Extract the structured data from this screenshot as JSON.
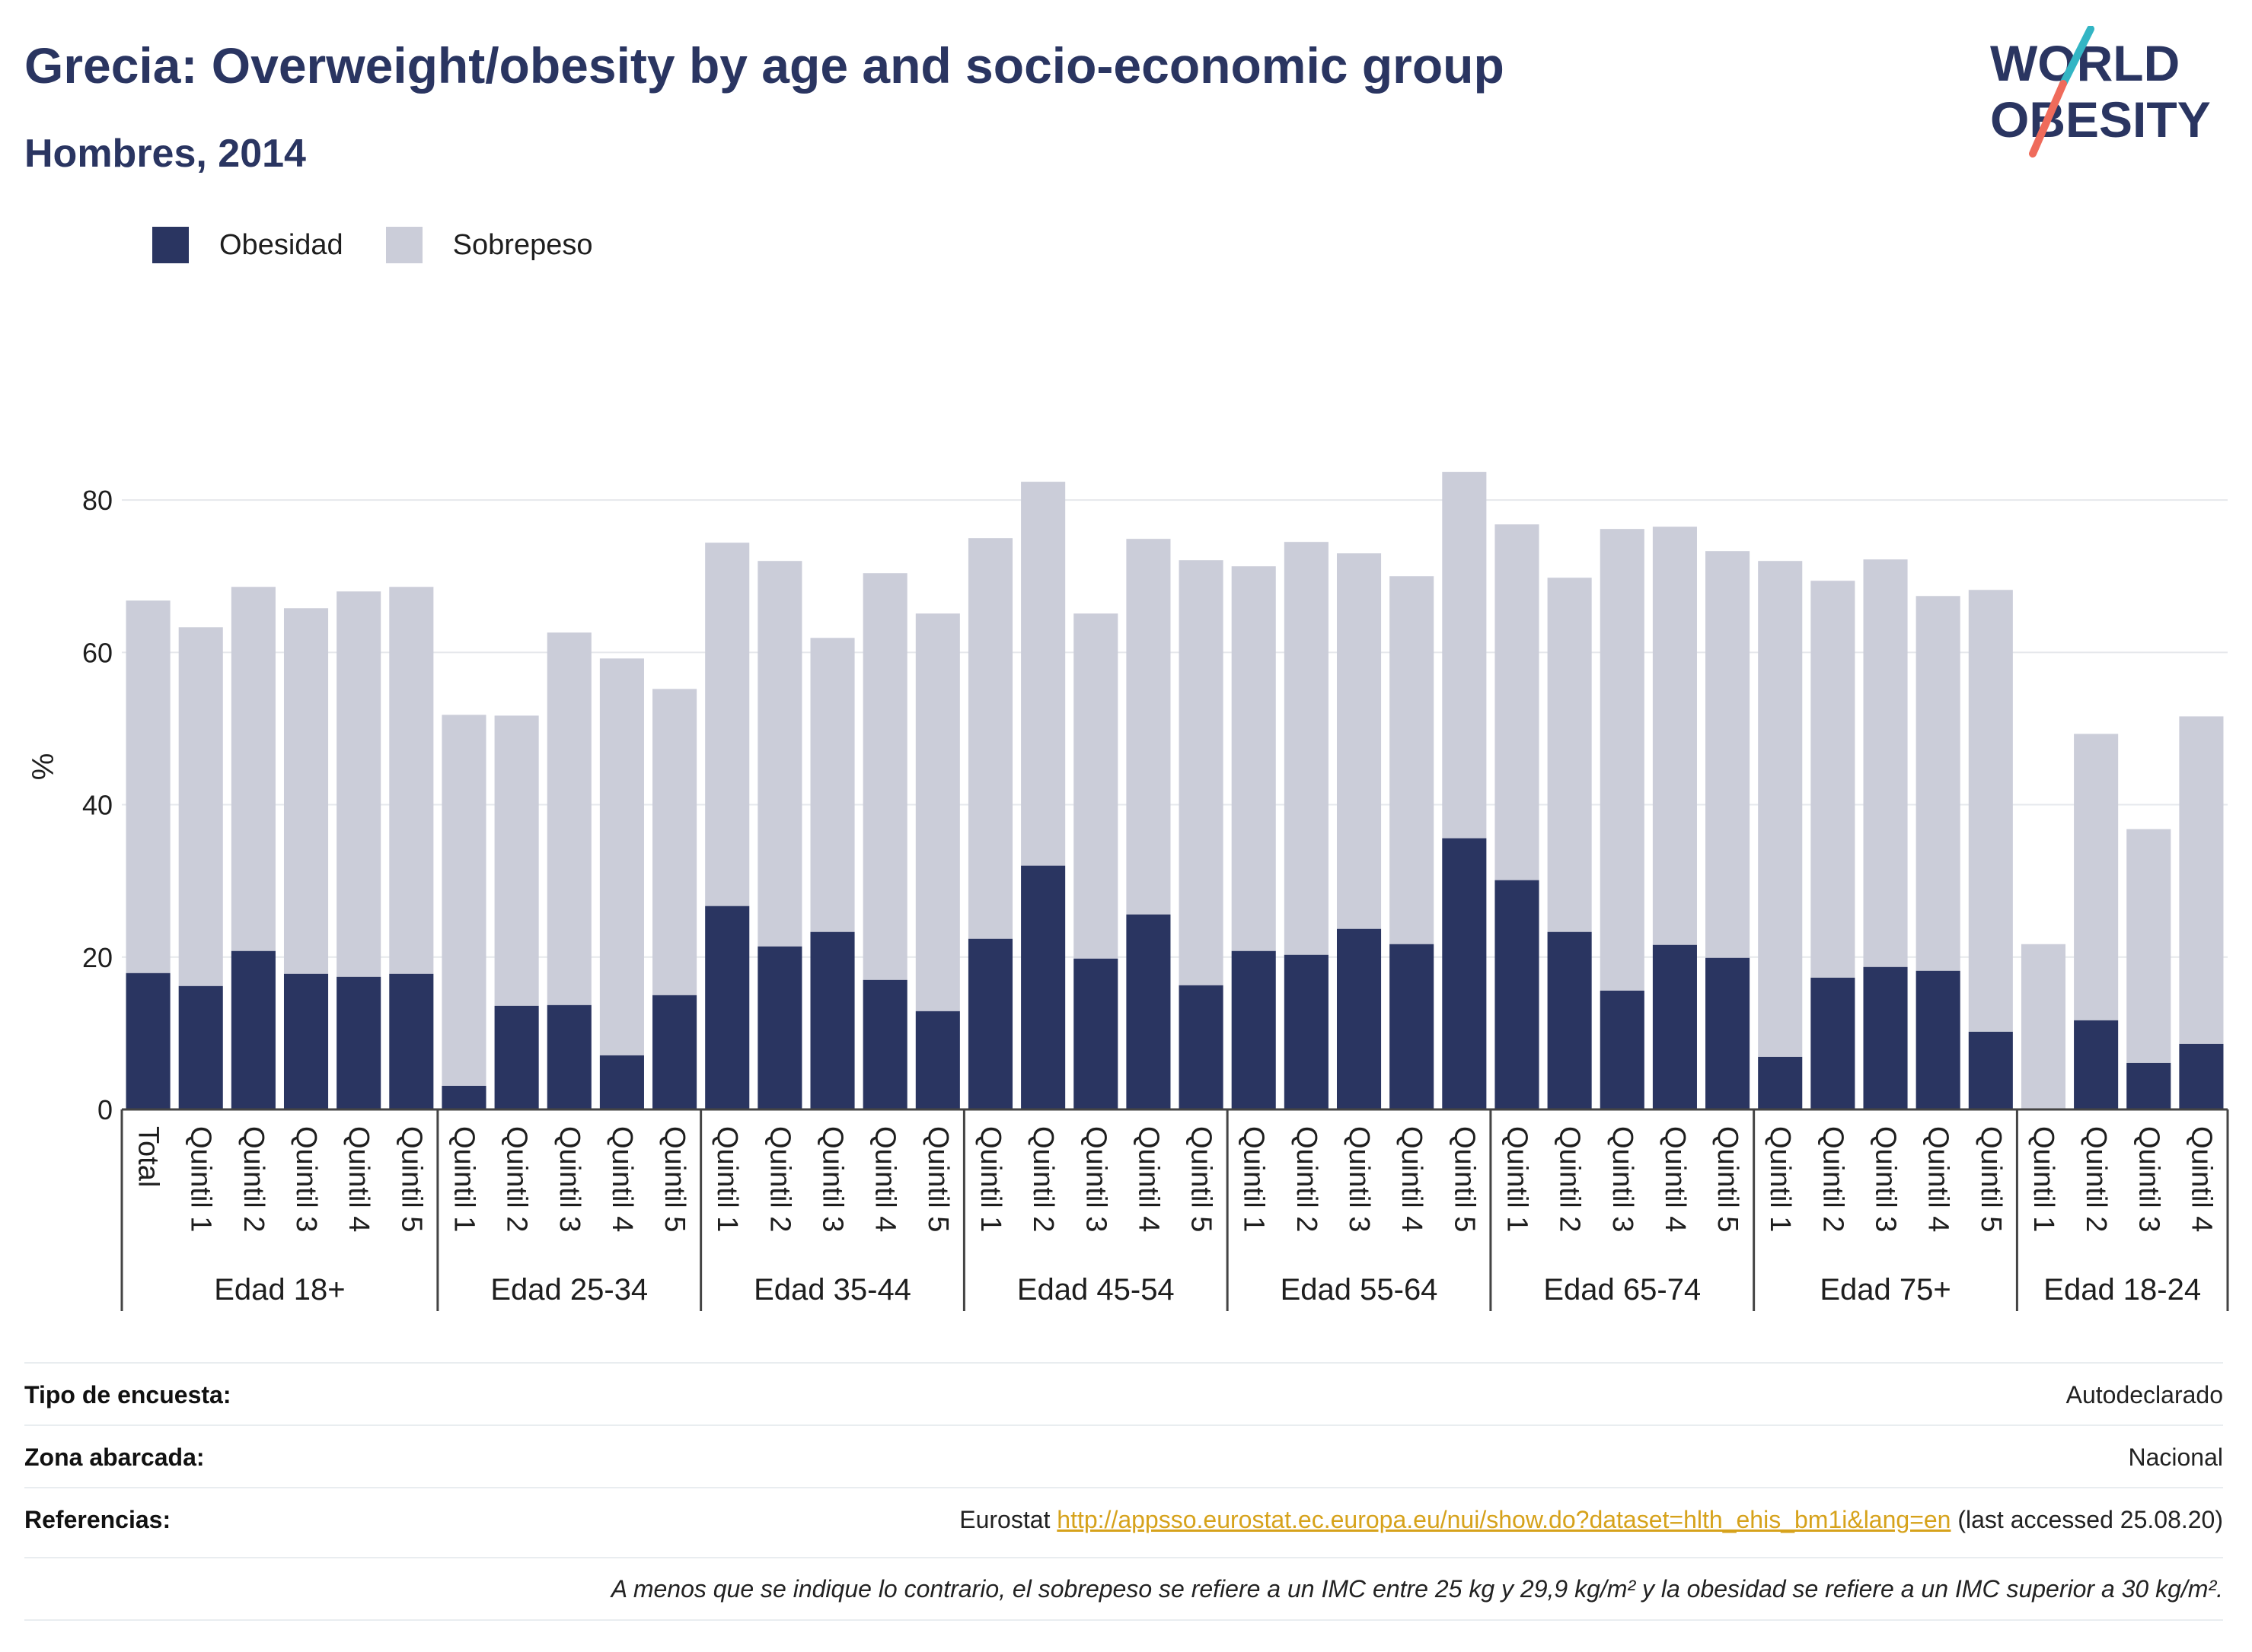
{
  "header": {
    "title": "Grecia: Overweight/obesity by age and socio-economic group",
    "subtitle": "Hombres, 2014"
  },
  "logo": {
    "line1": "WORLD",
    "line2": "OBESITY"
  },
  "colors": {
    "obesity": "#2a3561",
    "overweight": "#cbcdd9",
    "title": "#2a3561",
    "link": "#d6a21b"
  },
  "legend": [
    {
      "label": "Obesidad",
      "color": "#2a3561"
    },
    {
      "label": "Sobrepeso",
      "color": "#cbcdd9"
    }
  ],
  "chart_data": {
    "type": "bar",
    "stacked": true,
    "ylabel": "%",
    "ylim": [
      0,
      90
    ],
    "yticks": [
      0,
      20,
      40,
      60,
      80
    ],
    "grid": true,
    "groups": [
      {
        "label": "Edad 18+",
        "categories": [
          "Total",
          "Quintil 1",
          "Quintil 2",
          "Quintil 3",
          "Quintil 4",
          "Quintil 5"
        ]
      },
      {
        "label": "Edad 25-34",
        "categories": [
          "Quintil 1",
          "Quintil 2",
          "Quintil 3",
          "Quintil 4",
          "Quintil 5"
        ]
      },
      {
        "label": "Edad 35-44",
        "categories": [
          "Quintil 1",
          "Quintil 2",
          "Quintil 3",
          "Quintil 4",
          "Quintil 5"
        ]
      },
      {
        "label": "Edad 45-54",
        "categories": [
          "Quintil 1",
          "Quintil 2",
          "Quintil 3",
          "Quintil 4",
          "Quintil 5"
        ]
      },
      {
        "label": "Edad 55-64",
        "categories": [
          "Quintil 1",
          "Quintil 2",
          "Quintil 3",
          "Quintil 4",
          "Quintil 5"
        ]
      },
      {
        "label": "Edad 65-74",
        "categories": [
          "Quintil 1",
          "Quintil 2",
          "Quintil 3",
          "Quintil 4",
          "Quintil 5"
        ]
      },
      {
        "label": "Edad 75+",
        "categories": [
          "Quintil 1",
          "Quintil 2",
          "Quintil 3",
          "Quintil 4",
          "Quintil 5"
        ]
      },
      {
        "label": "Edad 18-24",
        "categories": [
          "Quintil 1",
          "Quintil 2",
          "Quintil 3",
          "Quintil 4"
        ]
      }
    ],
    "series": [
      {
        "name": "Obesidad",
        "values": [
          17.9,
          16.2,
          20.8,
          17.8,
          17.4,
          17.8,
          3.1,
          13.6,
          13.7,
          7.1,
          15.0,
          26.7,
          21.4,
          23.3,
          17.0,
          12.9,
          22.4,
          32.0,
          19.8,
          25.6,
          16.3,
          20.8,
          20.3,
          23.7,
          21.7,
          35.6,
          30.1,
          23.3,
          15.6,
          21.6,
          19.9,
          6.9,
          17.3,
          18.7,
          18.2,
          10.2,
          0.0,
          11.7,
          6.1,
          8.6
        ]
      },
      {
        "name": "Sobrepeso",
        "values": [
          48.9,
          47.1,
          47.8,
          48.0,
          50.6,
          50.8,
          48.7,
          38.1,
          48.9,
          52.1,
          40.2,
          47.7,
          50.6,
          38.6,
          53.4,
          52.2,
          52.6,
          50.4,
          45.3,
          49.3,
          55.8,
          50.5,
          54.2,
          49.3,
          48.3,
          48.1,
          46.7,
          46.5,
          60.6,
          54.9,
          53.4,
          65.1,
          52.1,
          53.5,
          49.2,
          58.0,
          21.7,
          37.6,
          30.7,
          43.0
        ]
      }
    ]
  },
  "footer": {
    "rows": [
      {
        "key": "Tipo de encuesta:",
        "value": "Autodeclarado"
      },
      {
        "key": "Zona abarcada:",
        "value": "Nacional"
      }
    ],
    "reference": {
      "key": "Referencias:",
      "prefix": "Eurostat ",
      "link": "http://appsso.eurostat.ec.europa.eu/nui/show.do?dataset=hlth_ehis_bm1i&lang=en",
      "suffix": " (last accessed 25.08.20)"
    },
    "note": "A menos que se indique lo contrario, el sobrepeso se refiere a un IMC entre 25 kg y 29,9 kg/m² y la obesidad se refiere a un IMC superior a 30 kg/m²."
  }
}
